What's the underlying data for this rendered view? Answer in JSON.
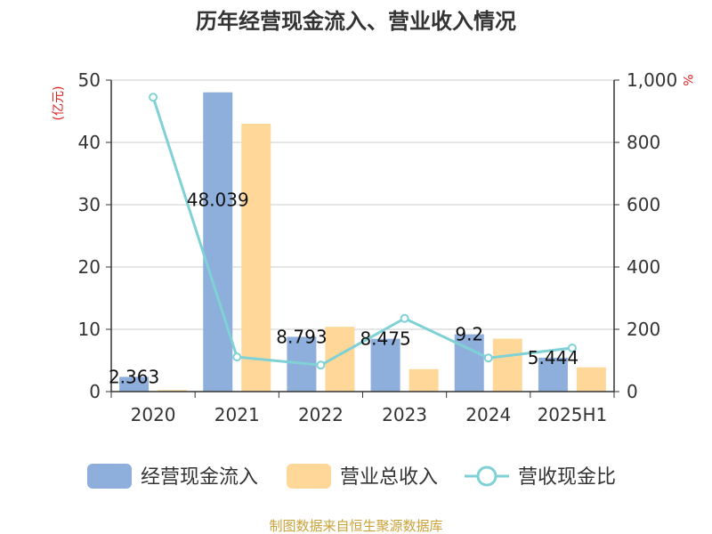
{
  "chart_data": {
    "type": "bar",
    "title": "历年经营现金流入、营业收入情况",
    "categories": [
      "2020",
      "2021",
      "2022",
      "2023",
      "2024",
      "2025H1"
    ],
    "y_left_unit": "(亿元)",
    "y_right_unit": "%",
    "y_left_ticks": [
      "0",
      "10",
      "20",
      "30",
      "40",
      "50"
    ],
    "y_right_ticks": [
      "0",
      "200",
      "400",
      "600",
      "800",
      "1,000"
    ],
    "ylim_left": [
      0,
      50
    ],
    "ylim_right": [
      0,
      1000
    ],
    "grid": true,
    "legend_position": "bottom",
    "series": [
      {
        "name": "经营现金流入",
        "kind": "bar",
        "axis": "left",
        "color": "#8eaedb",
        "values": [
          2.363,
          48.039,
          8.793,
          8.475,
          9.2,
          5.444
        ],
        "labels": [
          "2.363",
          "48.039",
          "8.793",
          "8.475",
          "9.2",
          "5.444"
        ]
      },
      {
        "name": "营业总收入",
        "kind": "bar",
        "axis": "left",
        "color": "#ffd899",
        "values": [
          0.25,
          43.0,
          10.4,
          3.6,
          8.5,
          3.9
        ]
      },
      {
        "name": "营收现金比",
        "kind": "line",
        "axis": "right",
        "color": "#7fd1d6",
        "values": [
          945,
          111,
          85,
          235,
          108,
          140
        ]
      }
    ]
  },
  "source_text": "制图数据来自恒生聚源数据库",
  "colors": {
    "title": "#333333",
    "axis_unit": "#e02020",
    "axis_text": "#333333",
    "grid": "#cccccc",
    "source": "#c9a23a"
  }
}
